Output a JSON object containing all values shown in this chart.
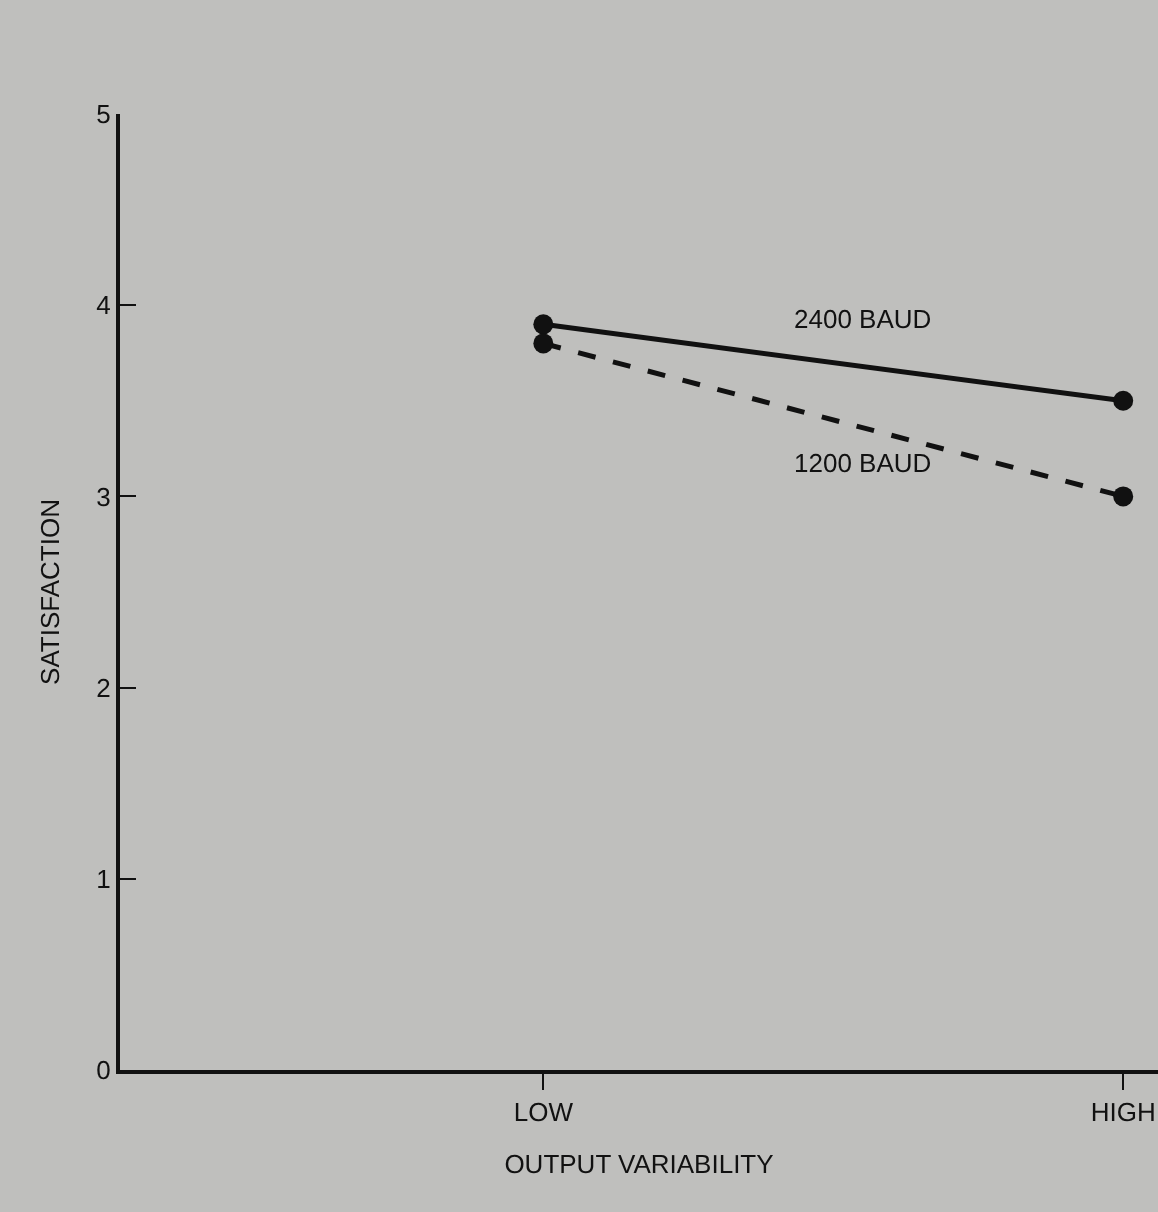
{
  "chart_data": {
    "type": "line",
    "xlabel": "OUTPUT VARIABILITY",
    "ylabel": "SATISFACTION",
    "categories": [
      "LOW",
      "HIGH"
    ],
    "series": [
      {
        "name": "2400 BAUD",
        "color": "#111111",
        "values": [
          3.9,
          3.5
        ],
        "line_style": "solid"
      },
      {
        "name": "1200 BAUD",
        "color": "#111111",
        "values": [
          3.8,
          3.0
        ],
        "line_style": "dashed"
      }
    ],
    "ylim": [
      0,
      5
    ],
    "yticks": [
      0,
      1,
      2,
      3,
      4,
      5
    ],
    "grid": false,
    "legend": false,
    "marker": "circle"
  }
}
